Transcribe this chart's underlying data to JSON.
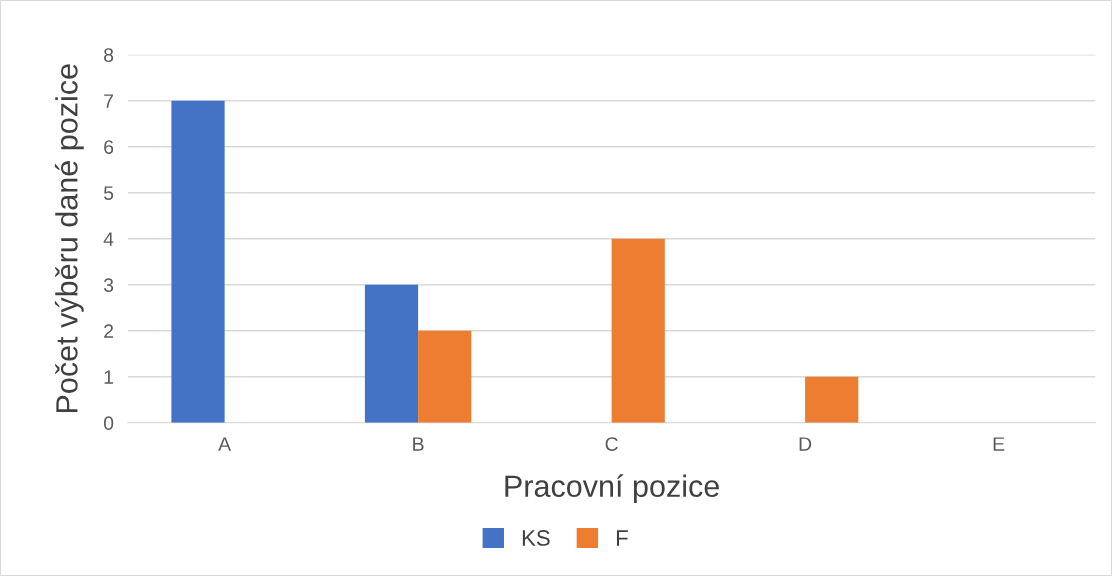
{
  "chart_data": {
    "type": "bar",
    "xlabel": "Pracovní pozice",
    "ylabel": "Počet výběru dané pozice",
    "categories": [
      "A",
      "B",
      "C",
      "D",
      "E"
    ],
    "series": [
      {
        "name": "KS",
        "color": "#4472c4",
        "values": [
          7,
          3,
          0,
          0,
          0
        ]
      },
      {
        "name": "F",
        "color": "#ed7d31",
        "values": [
          0,
          2,
          4,
          1,
          0
        ]
      }
    ],
    "ylim": [
      0,
      8
    ],
    "yticks": [
      0,
      1,
      2,
      3,
      4,
      5,
      6,
      7,
      8
    ],
    "grid": "y",
    "legend": "bottom"
  }
}
